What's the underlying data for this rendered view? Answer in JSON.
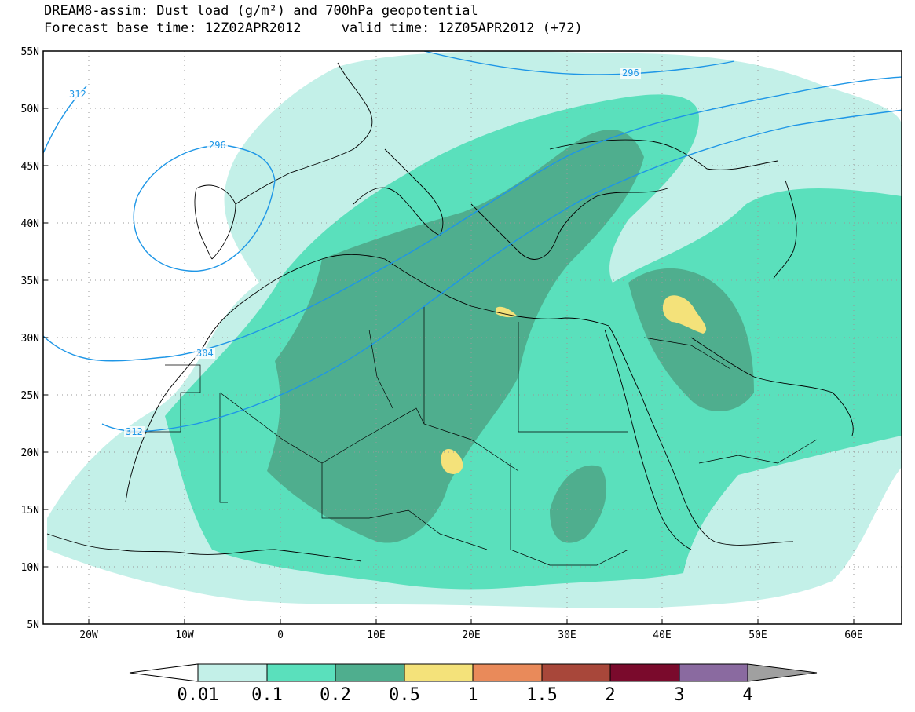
{
  "title": {
    "line1": "DREAM8-assim: Dust load (g/m²) and 700hPa geopotential",
    "base_time": "Forecast base time: 12Z02APR2012",
    "valid_time": "valid time: 12Z05APR2012 (+72)"
  },
  "map": {
    "region": "North Africa / Mediterranean / Middle East",
    "lon_range": [
      -25,
      65
    ],
    "lat_range": [
      5,
      55
    ],
    "lat_ticks": [
      {
        "value": 55,
        "label": "55N"
      },
      {
        "value": 50,
        "label": "50N"
      },
      {
        "value": 45,
        "label": "45N"
      },
      {
        "value": 40,
        "label": "40N"
      },
      {
        "value": 35,
        "label": "35N"
      },
      {
        "value": 30,
        "label": "30N"
      },
      {
        "value": 25,
        "label": "25N"
      },
      {
        "value": 20,
        "label": "20N"
      },
      {
        "value": 15,
        "label": "15N"
      },
      {
        "value": 10,
        "label": "10N"
      },
      {
        "value": 5,
        "label": "5N"
      }
    ],
    "lon_ticks": [
      {
        "value": -20,
        "label": "20W"
      },
      {
        "value": -10,
        "label": "10W"
      },
      {
        "value": 0,
        "label": "0"
      },
      {
        "value": 10,
        "label": "10E"
      },
      {
        "value": 20,
        "label": "20E"
      },
      {
        "value": 30,
        "label": "30E"
      },
      {
        "value": 40,
        "label": "40E"
      },
      {
        "value": 50,
        "label": "50E"
      },
      {
        "value": 60,
        "label": "60E"
      }
    ],
    "contour_labels": [
      "312",
      "296",
      "296",
      "304",
      "312"
    ]
  },
  "colorbar": {
    "labels": [
      "0.01",
      "0.1",
      "0.2",
      "0.5",
      "1",
      "1.5",
      "2",
      "3",
      "4"
    ],
    "colors": [
      "#ffffff",
      "#c3f0e8",
      "#5ae0bc",
      "#4fae8e",
      "#f4e27a",
      "#e98a5a",
      "#a8473a",
      "#7a0a2c",
      "#8a6aa0",
      "#a0a0a0"
    ]
  }
}
